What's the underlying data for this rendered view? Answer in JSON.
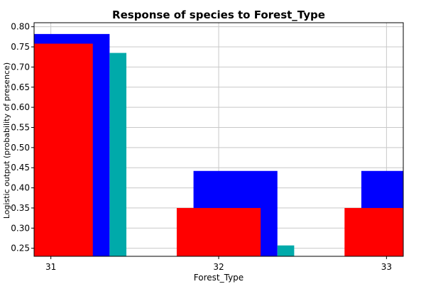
{
  "chart_data": {
    "type": "bar",
    "title": "Response of species to Forest_Type",
    "xlabel": "Forest_Type",
    "ylabel": "Logistic output (probability of presence)",
    "categories": [
      31,
      32,
      33
    ],
    "xlim": [
      30.9,
      33.1
    ],
    "ylim": [
      0.23,
      0.81
    ],
    "yticks": [
      0.25,
      0.3,
      0.35,
      0.4,
      0.45,
      0.5,
      0.55,
      0.6,
      0.65,
      0.7,
      0.75,
      0.8
    ],
    "ytick_labels": [
      "0.25",
      "0.30",
      "0.35",
      "0.40",
      "0.45",
      "0.50",
      "0.55",
      "0.60",
      "0.65",
      "0.70",
      "0.75",
      "0.80"
    ],
    "xtick_labels": [
      "31",
      "32",
      "33"
    ],
    "grid": true,
    "series": [
      {
        "color": "#0000ff",
        "bars": [
          {
            "x0": 30.9,
            "x1": 31.35,
            "value": 0.782
          },
          {
            "x0": 31.85,
            "x1": 32.35,
            "value": 0.442
          },
          {
            "x0": 32.85,
            "x1": 33.1,
            "value": 0.442
          }
        ]
      },
      {
        "color": "#00aaaa",
        "bars": [
          {
            "x0": 31.35,
            "x1": 31.45,
            "value": 0.735
          },
          {
            "x0": 32.35,
            "x1": 32.45,
            "value": 0.257
          }
        ]
      },
      {
        "color": "#ff0000",
        "bars": [
          {
            "x0": 30.9,
            "x1": 31.25,
            "value": 0.758
          },
          {
            "x0": 31.75,
            "x1": 32.25,
            "value": 0.35
          },
          {
            "x0": 32.75,
            "x1": 33.1,
            "value": 0.35
          }
        ]
      }
    ]
  }
}
